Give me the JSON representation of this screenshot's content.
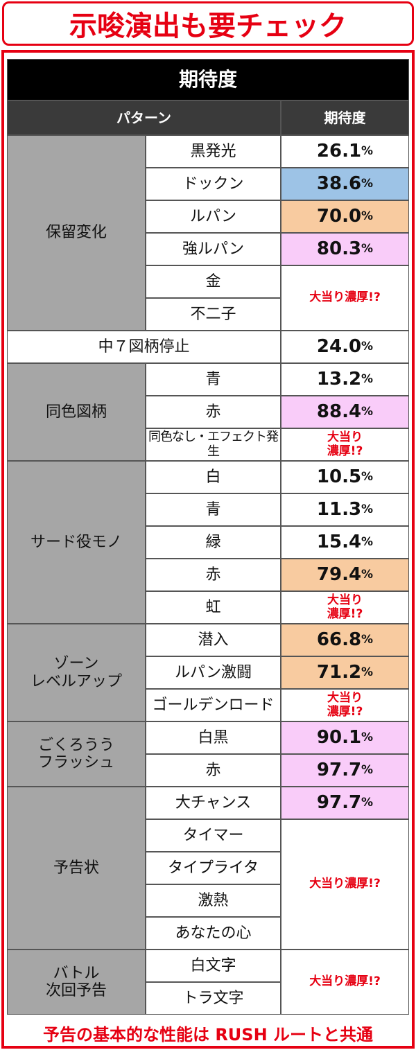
{
  "header": {
    "title": "示唆演出も要チェック"
  },
  "table": {
    "title": "期待度",
    "columns": [
      "パターン",
      "期待度"
    ],
    "groups": [
      {
        "label": "保留変化",
        "cells": [
          {
            "patterns": [
              "黒発光"
            ],
            "rate": {
              "value": "26.1",
              "unit": "%",
              "color": "#ffffff"
            }
          },
          {
            "patterns": [
              "ドックン"
            ],
            "rate": {
              "value": "38.6",
              "unit": "%",
              "color": "#9dc3e6"
            }
          },
          {
            "patterns": [
              "ルパン"
            ],
            "rate": {
              "value": "70.0",
              "unit": "%",
              "color": "#f8cba0"
            }
          },
          {
            "patterns": [
              "強ルパン"
            ],
            "rate": {
              "value": "80.3",
              "unit": "%",
              "color": "#f9ccf9"
            }
          },
          {
            "patterns": [
              "金",
              "不二子"
            ],
            "rate": {
              "text": "大当り濃厚!?"
            }
          }
        ]
      },
      {
        "cells": [
          {
            "patterns": [
              "中７図柄停止"
            ],
            "rate": {
              "value": "24.0",
              "unit": "%",
              "color": "#ffffff"
            }
          }
        ]
      },
      {
        "label": "同色図柄",
        "cells": [
          {
            "patterns": [
              "青"
            ],
            "rate": {
              "value": "13.2",
              "unit": "%",
              "color": "#ffffff"
            }
          },
          {
            "patterns": [
              "赤"
            ],
            "rate": {
              "value": "88.4",
              "unit": "%",
              "color": "#f9ccf9"
            }
          },
          {
            "patterns": [
              "同色なし・エフェクト発生"
            ],
            "rate": {
              "text": "大当り\n濃厚!?"
            }
          }
        ]
      },
      {
        "label": "サード役モノ",
        "cells": [
          {
            "patterns": [
              "白"
            ],
            "rate": {
              "value": "10.5",
              "unit": "%",
              "color": "#ffffff"
            }
          },
          {
            "patterns": [
              "青"
            ],
            "rate": {
              "value": "11.3",
              "unit": "%",
              "color": "#ffffff"
            }
          },
          {
            "patterns": [
              "緑"
            ],
            "rate": {
              "value": "15.4",
              "unit": "%",
              "color": "#ffffff"
            }
          },
          {
            "patterns": [
              "赤"
            ],
            "rate": {
              "value": "79.4",
              "unit": "%",
              "color": "#f8cba0"
            }
          },
          {
            "patterns": [
              "虹"
            ],
            "rate": {
              "text": "大当り\n濃厚!?"
            }
          }
        ]
      },
      {
        "label": "ゾーン\nレベルアップ",
        "cells": [
          {
            "patterns": [
              "潜入"
            ],
            "rate": {
              "value": "66.8",
              "unit": "%",
              "color": "#f8cba0"
            }
          },
          {
            "patterns": [
              "ルパン激闘"
            ],
            "rate": {
              "value": "71.2",
              "unit": "%",
              "color": "#f8cba0"
            }
          },
          {
            "patterns": [
              "ゴールデンロード"
            ],
            "rate": {
              "text": "大当り\n濃厚!?"
            }
          }
        ]
      },
      {
        "label": "ごくろうう\nフラッシュ",
        "cells": [
          {
            "patterns": [
              "白黒"
            ],
            "rate": {
              "value": "90.1",
              "unit": "%",
              "color": "#f9ccf9"
            }
          },
          {
            "patterns": [
              "赤"
            ],
            "rate": {
              "value": "97.7",
              "unit": "%",
              "color": "#f9ccf9"
            }
          }
        ]
      },
      {
        "label": "予告状",
        "cells": [
          {
            "patterns": [
              "大チャンス"
            ],
            "rate": {
              "value": "97.7",
              "unit": "%",
              "color": "#f9ccf9"
            }
          },
          {
            "patterns": [
              "タイマー",
              "タイプライタ",
              "激熱",
              "あなたの心"
            ],
            "rate": {
              "text": "大当り濃厚!?"
            }
          }
        ]
      },
      {
        "label": "バトル\n次回予告",
        "cells": [
          {
            "patterns": [
              "白文字",
              "トラ文字"
            ],
            "rate": {
              "text": "大当り濃厚!?"
            }
          }
        ]
      }
    ]
  },
  "footer": {
    "note": "予告の基本的な性能は RUSH ルートと共通"
  }
}
